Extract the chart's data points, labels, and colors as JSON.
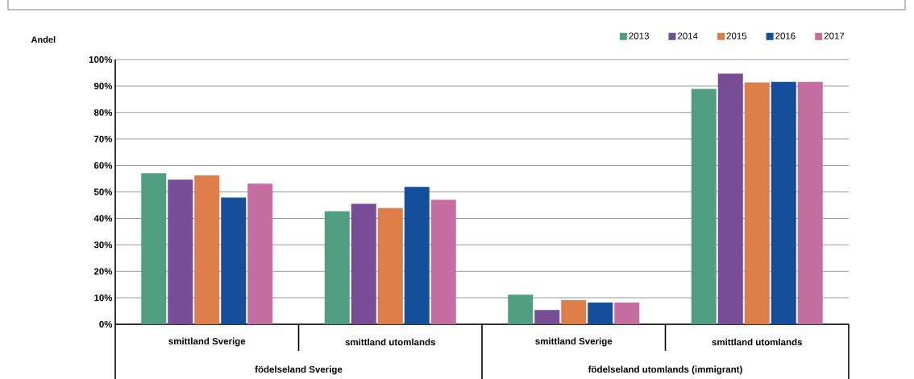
{
  "chart_data": {
    "type": "bar",
    "ylabel": "Andel",
    "categories": [
      "smittland Sverige",
      "smittland utomlands",
      "smittland Sverige",
      "smittland utomlands"
    ],
    "annotations": [
      "födelseland Sverige",
      "födelseland utomlands (immigrant)"
    ],
    "series": [
      {
        "name": "2013",
        "color": "#509e80",
        "values": [
          57.1,
          42.7,
          11.2,
          88.9
        ]
      },
      {
        "name": "2014",
        "color": "#774e95",
        "values": [
          54.6,
          45.5,
          5.4,
          94.7
        ]
      },
      {
        "name": "2015",
        "color": "#dd7e48",
        "values": [
          56.2,
          43.9,
          9.1,
          91.3
        ]
      },
      {
        "name": "2016",
        "color": "#154e9a",
        "values": [
          47.9,
          51.9,
          8.2,
          91.6
        ]
      },
      {
        "name": "2017",
        "color": "#c56ea2",
        "values": [
          53.1,
          47.0,
          8.2,
          91.6
        ]
      }
    ],
    "ylim": [
      0,
      100
    ],
    "yticks": [
      {
        "value": 0,
        "label": "0%"
      },
      {
        "value": 10,
        "label": "10%"
      },
      {
        "value": 20,
        "label": "20%"
      },
      {
        "value": 30,
        "label": "30%"
      },
      {
        "value": 40,
        "label": "40%"
      },
      {
        "value": 50,
        "label": "50%"
      },
      {
        "value": 60,
        "label": "60%"
      },
      {
        "value": 70,
        "label": "70%"
      },
      {
        "value": 80,
        "label": "80%"
      },
      {
        "value": 90,
        "label": "90%"
      },
      {
        "value": 100,
        "label": "100%"
      }
    ],
    "grid": "y",
    "legend": "top right"
  }
}
